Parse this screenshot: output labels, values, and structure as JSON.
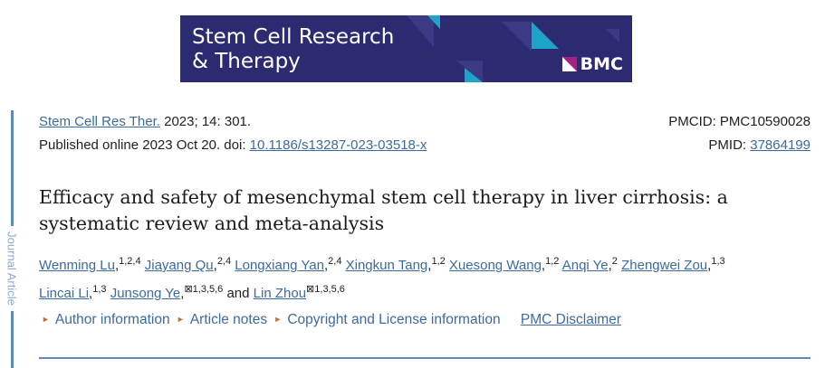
{
  "banner": {
    "journal": "Stem Cell Research & Therapy",
    "journal_line1": "Stem Cell Research",
    "journal_line2": "& Therapy",
    "publisher": "BMC",
    "bg_color": "#2c2a70",
    "accent_color": "#1fa3c9"
  },
  "sidebar": {
    "label": "Journal Article"
  },
  "citation": {
    "journal_abbr": "Stem Cell Res Ther.",
    "volume": "2023; 14: 301.",
    "published": "Published online 2023 Oct 20. doi: ",
    "doi": "10.1186/s13287-023-03518-x",
    "pmcid_label": "PMCID: PMC10590028",
    "pmid_label": "PMID: ",
    "pmid": "37864199"
  },
  "title": "Efficacy and safety of mesenchymal stem cell therapy in liver cirrhosis: a systematic review and meta-analysis",
  "authors": [
    {
      "name": "Wenming Lu",
      "sup": "1,2,4"
    },
    {
      "name": "Jiayang Qu",
      "sup": "2,4"
    },
    {
      "name": "Longxiang Yan",
      "sup": "2,4"
    },
    {
      "name": "Xingkun Tang",
      "sup": "1,2"
    },
    {
      "name": "Xuesong Wang",
      "sup": "1,2"
    },
    {
      "name": "Anqi Ye",
      "sup": "2"
    },
    {
      "name": "Zhengwei Zou",
      "sup": "1,3"
    },
    {
      "name": "Lincai Li",
      "sup": "1,3"
    },
    {
      "name": "Junsong Ye",
      "sup": "⊠1,3,5,6"
    },
    {
      "name": "Lin Zhou",
      "sup": "⊠1,3,5,6"
    }
  ],
  "and_word": "and",
  "links": [
    "Author information",
    "Article notes",
    "Copyright and License information",
    "PMC Disclaimer"
  ]
}
